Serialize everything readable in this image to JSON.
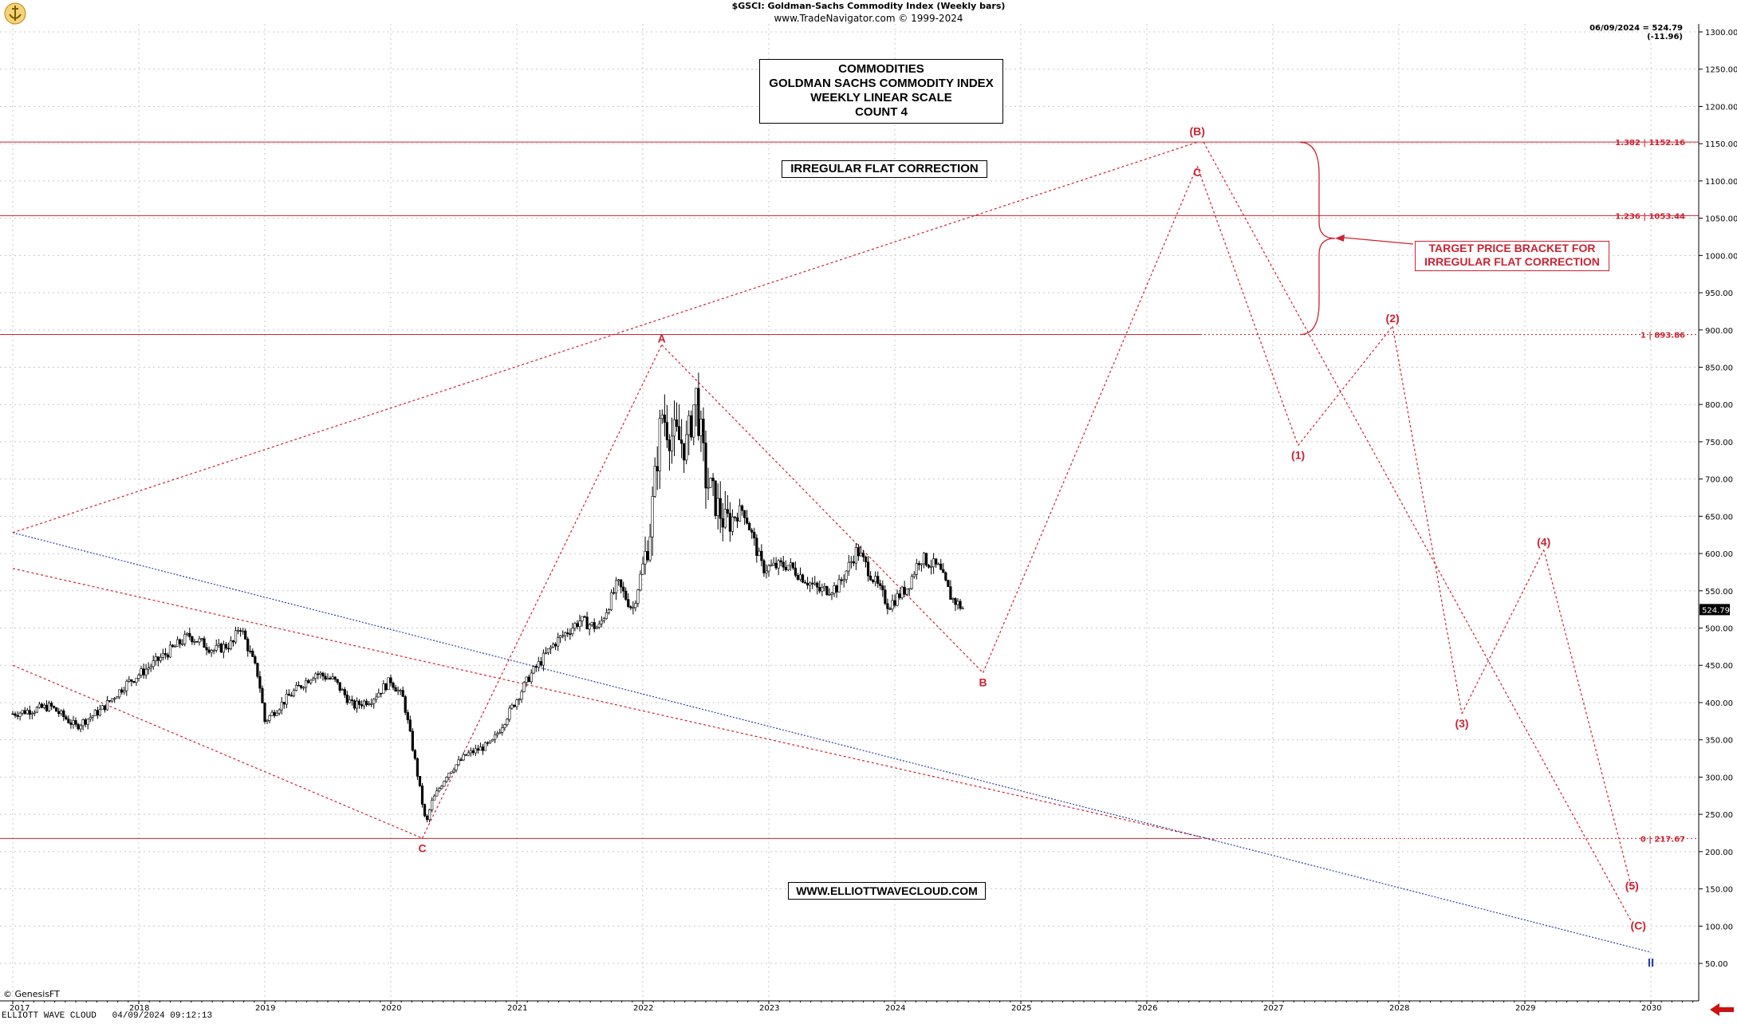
{
  "header": {
    "line1": "$GSCI:  Goldman-Sachs Commodity Index  (Weekly bars)",
    "line2": "www.TradeNavigator.com © 1999-2024"
  },
  "last_quote": "06/09/2024 = 524.79 (-11.96)",
  "title_box": [
    "COMMODITIES",
    "GOLDMAN SACHS COMMODITY INDEX",
    "WEEKLY LINEAR SCALE",
    "COUNT 4"
  ],
  "pattern_label": "IRREGULAR FLAT CORRECTION",
  "target_label": [
    "TARGET PRICE BRACKET FOR",
    "IRREGULAR FLAT CORRECTION"
  ],
  "website": "WWW.ELLIOTTWAVECLOUD.COM",
  "copyright": "© GenesisFT",
  "footer": "ELLIOTT WAVE CLOUD   04/09/2024 09:12:13",
  "colors": {
    "wave": "#cc2233",
    "channel": "#2a3fa0",
    "price": "#000000",
    "grid": "#c8c8c8"
  },
  "chart_data": {
    "type": "candlestick",
    "title": "$GSCI:  Goldman-Sachs Commodity Index  (Weekly bars)",
    "x_range": [
      2017.0,
      2030.5
    ],
    "ylim": [
      25,
      1310
    ],
    "y_ticks": [
      50,
      100,
      150,
      200,
      250,
      300,
      350,
      400,
      450,
      500,
      550,
      600,
      650,
      700,
      750,
      800,
      850,
      900,
      950,
      1000,
      1050,
      1100,
      1150,
      1200,
      1250,
      1300
    ],
    "x_ticks": [
      "2017",
      "2018",
      "2019",
      "2020",
      "2021",
      "2022",
      "2023",
      "2024",
      "2025",
      "2026",
      "2027",
      "2028",
      "2029",
      "2030"
    ],
    "last_price": 524.79,
    "price_path": [
      [
        2017.0,
        385
      ],
      [
        2017.3,
        395
      ],
      [
        2017.5,
        368
      ],
      [
        2017.7,
        390
      ],
      [
        2017.9,
        425
      ],
      [
        2018.1,
        450
      ],
      [
        2018.25,
        470
      ],
      [
        2018.4,
        490
      ],
      [
        2018.6,
        470
      ],
      [
        2018.75,
        480
      ],
      [
        2018.8,
        505
      ],
      [
        2018.95,
        435
      ],
      [
        2019.0,
        375
      ],
      [
        2019.2,
        410
      ],
      [
        2019.4,
        440
      ],
      [
        2019.55,
        430
      ],
      [
        2019.7,
        395
      ],
      [
        2019.85,
        405
      ],
      [
        2020.0,
        430
      ],
      [
        2020.1,
        405
      ],
      [
        2020.2,
        315
      ],
      [
        2020.28,
        235
      ],
      [
        2020.32,
        265
      ],
      [
        2020.45,
        305
      ],
      [
        2020.6,
        330
      ],
      [
        2020.8,
        345
      ],
      [
        2020.95,
        390
      ],
      [
        2021.1,
        435
      ],
      [
        2021.3,
        480
      ],
      [
        2021.5,
        510
      ],
      [
        2021.65,
        500
      ],
      [
        2021.8,
        560
      ],
      [
        2021.92,
        525
      ],
      [
        2022.05,
        620
      ],
      [
        2022.15,
        790
      ],
      [
        2022.22,
        760
      ],
      [
        2022.35,
        745
      ],
      [
        2022.42,
        815
      ],
      [
        2022.5,
        700
      ],
      [
        2022.65,
        640
      ],
      [
        2022.8,
        660
      ],
      [
        2022.95,
        580
      ],
      [
        2023.15,
        585
      ],
      [
        2023.4,
        550
      ],
      [
        2023.55,
        555
      ],
      [
        2023.7,
        605
      ],
      [
        2023.85,
        560
      ],
      [
        2023.95,
        530
      ],
      [
        2024.1,
        555
      ],
      [
        2024.2,
        595
      ],
      [
        2024.35,
        580
      ],
      [
        2024.45,
        540
      ],
      [
        2024.55,
        525
      ]
    ],
    "levels": [
      {
        "label": "1.382 | 1152.16",
        "value": 1152.16
      },
      {
        "label": "1.236 | 1053.44",
        "value": 1053.44
      },
      {
        "label": "1 | 893.86",
        "value": 893.86
      },
      {
        "label": "0 | 217.67",
        "value": 217.67
      }
    ],
    "wave_points": [
      {
        "label": "C",
        "x": 2020.25,
        "y": 217.67
      },
      {
        "label": "A",
        "x": 2022.15,
        "y": 880
      },
      {
        "label": "B",
        "x": 2024.7,
        "y": 440
      },
      {
        "label": "(B)",
        "x": 2026.4,
        "y": 1152
      },
      {
        "label": "C",
        "x": 2026.4,
        "y": 1120
      },
      {
        "label": "(1)",
        "x": 2027.2,
        "y": 745
      },
      {
        "label": "(2)",
        "x": 2027.95,
        "y": 905
      },
      {
        "label": "(3)",
        "x": 2028.5,
        "y": 385
      },
      {
        "label": "(4)",
        "x": 2029.15,
        "y": 605
      },
      {
        "label": "(5)",
        "x": 2029.85,
        "y": 150
      },
      {
        "label": "(C)",
        "x": 2029.9,
        "y": 103
      }
    ],
    "channel_label": "II"
  }
}
